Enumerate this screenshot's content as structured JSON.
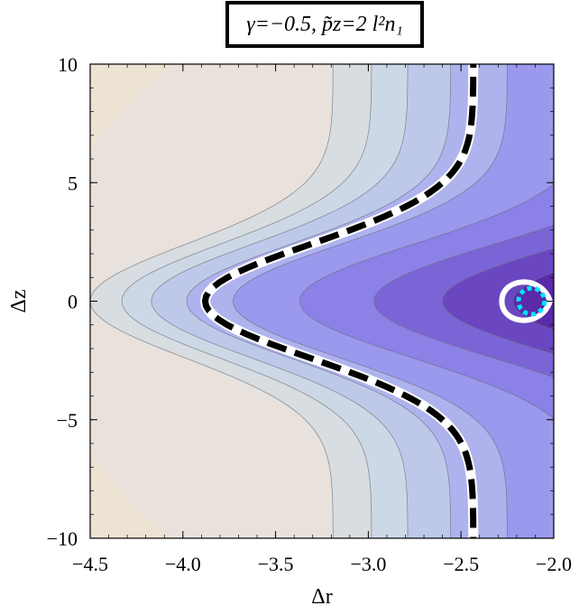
{
  "chart_data": {
    "type": "contour",
    "title": "γ=−0.5,  p̃z=2 l²n₁",
    "xlabel": "Δr",
    "ylabel": "Δz",
    "xlim": [
      -4.5,
      -2.0
    ],
    "ylim": [
      -10,
      10
    ],
    "x_ticks": [
      -4.5,
      -4.0,
      -3.5,
      -3.0,
      -2.5,
      -2.0
    ],
    "x_tick_labels": [
      "−4.5",
      "−4.0",
      "−3.5",
      "−3.0",
      "−2.5",
      "−2.0"
    ],
    "y_ticks": [
      -10,
      -5,
      0,
      5,
      10
    ],
    "y_tick_labels": [
      "−10",
      "−5",
      "0",
      "5",
      "10"
    ],
    "contour_levels": [
      {
        "r_at_z0": -4.5,
        "fill": "#d7dde0"
      },
      {
        "r_at_z0": -4.33,
        "fill": "#cdd8e6"
      },
      {
        "r_at_z0": -4.17,
        "fill": "#bec9ea"
      },
      {
        "r_at_z0": -3.98,
        "fill": "#aeb3ee"
      },
      {
        "r_at_z0": -3.73,
        "fill": "#9a99ed"
      },
      {
        "r_at_z0": -3.37,
        "fill": "#8c81e6"
      },
      {
        "r_at_z0": -2.97,
        "fill": "#7b64d5"
      },
      {
        "r_at_z0": -2.6,
        "fill": "#6a47c0"
      },
      {
        "r_at_z0": -2.22,
        "fill": "#5a2aa8"
      }
    ],
    "background_fill": "#e9e2dc",
    "corner_fill": "#ede3d2",
    "dashed_curve": {
      "r_at_z0": -3.88,
      "r_at_z10": -2.45,
      "color": "#000000",
      "outline": "#ffffff"
    },
    "white_loop": {
      "r_min": -2.28,
      "r_max": -2.02,
      "z_half": 1.0,
      "color": "#ffffff"
    },
    "cyan_loop": {
      "r_min": -2.19,
      "r_max": -2.05,
      "z_half": 0.55,
      "color": "#00e5ff"
    }
  }
}
